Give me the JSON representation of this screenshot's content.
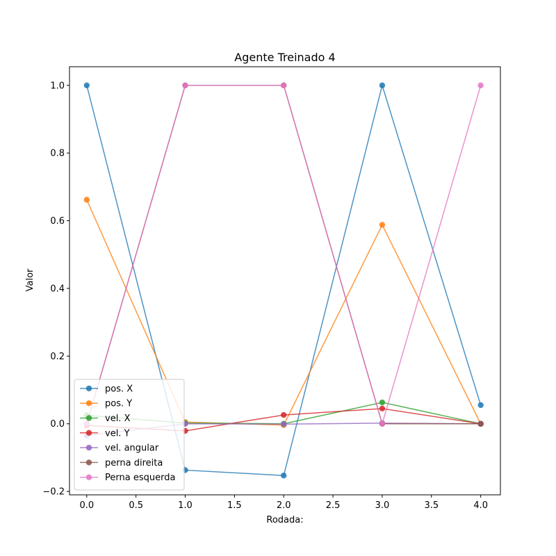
{
  "chart_data": {
    "type": "line",
    "title": "Agente Treinado 4",
    "xlabel": "Rodada:",
    "ylabel": "Valor",
    "xlim": [
      -0.175,
      4.2
    ],
    "ylim": [
      -0.21,
      1.055
    ],
    "xticks": [
      0.0,
      0.5,
      1.0,
      1.5,
      2.0,
      2.5,
      3.0,
      3.5,
      4.0
    ],
    "xtick_labels": [
      "0.0",
      "0.5",
      "1.0",
      "1.5",
      "2.0",
      "2.5",
      "3.0",
      "3.5",
      "4.0"
    ],
    "yticks": [
      -0.2,
      0.0,
      0.2,
      0.4,
      0.6,
      0.8,
      1.0
    ],
    "ytick_labels": [
      "−0.2",
      "0.0",
      "0.2",
      "0.4",
      "0.6",
      "0.8",
      "1.0"
    ],
    "grid": false,
    "legend_position": "lower-left",
    "x": [
      0,
      1,
      2,
      3,
      4
    ],
    "series": [
      {
        "name": "pos. X",
        "color": "#1f77b4",
        "values": [
          1.0,
          -0.137,
          -0.153,
          1.0,
          0.055
        ]
      },
      {
        "name": "pos. Y",
        "color": "#ff7f0e",
        "values": [
          0.662,
          0.005,
          -0.004,
          0.588,
          0.0
        ]
      },
      {
        "name": "vel. X",
        "color": "#2ca02c",
        "values": [
          0.025,
          0.002,
          0.0,
          0.063,
          0.0
        ]
      },
      {
        "name": "vel. Y",
        "color": "#d62728",
        "values": [
          -0.005,
          -0.021,
          0.026,
          0.045,
          0.0
        ]
      },
      {
        "name": "vel. angular",
        "color": "#9467bd",
        "values": [
          -0.035,
          0.0,
          -0.001,
          0.002,
          0.0
        ]
      },
      {
        "name": "perna direita",
        "color": "#8c564b",
        "values": [
          0.0,
          1.0,
          1.0,
          0.0,
          0.0
        ]
      },
      {
        "name": "Perna esquerda",
        "color": "#e377c2",
        "values": [
          0.0,
          1.0,
          1.0,
          0.0,
          1.0
        ]
      }
    ]
  }
}
